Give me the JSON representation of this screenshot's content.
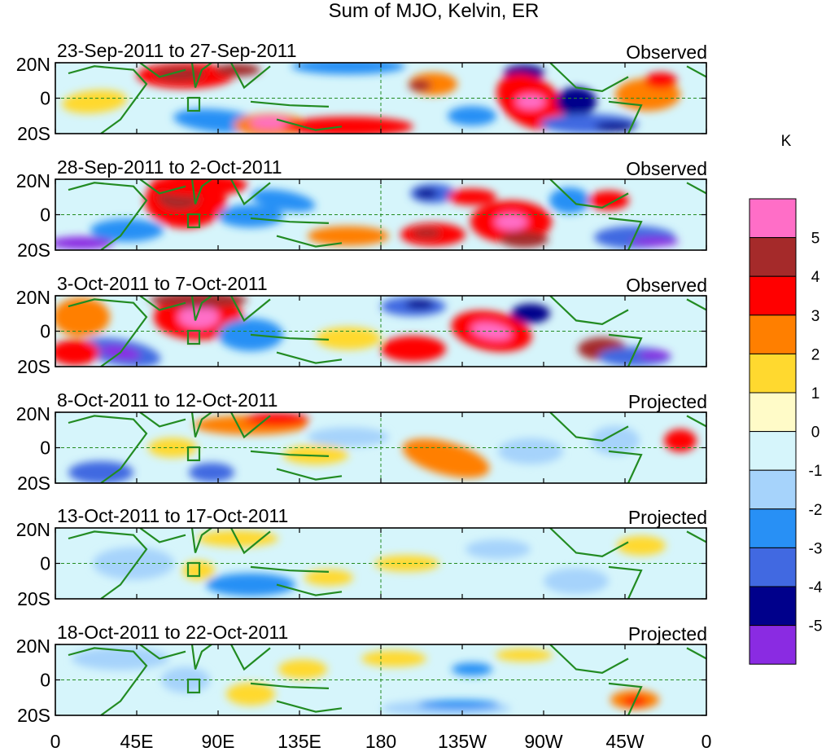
{
  "title": "Sum of MJO, Kelvin, ER",
  "panels": [
    {
      "dates": "23-Sep-2011 to 27-Sep-2011",
      "status": "Observed"
    },
    {
      "dates": "28-Sep-2011 to 2-Oct-2011",
      "status": "Observed"
    },
    {
      "dates": "3-Oct-2011 to 7-Oct-2011",
      "status": "Observed"
    },
    {
      "dates": "8-Oct-2011 to 12-Oct-2011",
      "status": "Projected"
    },
    {
      "dates": "13-Oct-2011 to 17-Oct-2011",
      "status": "Projected"
    },
    {
      "dates": "18-Oct-2011 to 22-Oct-2011",
      "status": "Projected"
    }
  ],
  "lat_labels": [
    "20N",
    "0",
    "20S"
  ],
  "lon_labels": [
    "0",
    "45E",
    "90E",
    "135E",
    "180",
    "135W",
    "90W",
    "45W",
    "0"
  ],
  "colorbar": {
    "unit": "K",
    "tick_labels": [
      "5",
      "4",
      "3",
      "2",
      "1",
      "0",
      "-1",
      "-2",
      "-3",
      "-4",
      "-5"
    ],
    "colors": [
      "#ff6ec7",
      "#a52a2a",
      "#ff0000",
      "#ff7f00",
      "#ffd92f",
      "#fffbc8",
      "#d6f5fb",
      "#a6d3fb",
      "#2890f5",
      "#4169e1",
      "#00008b",
      "#8a2be2"
    ]
  },
  "land_color": "#228b22"
}
